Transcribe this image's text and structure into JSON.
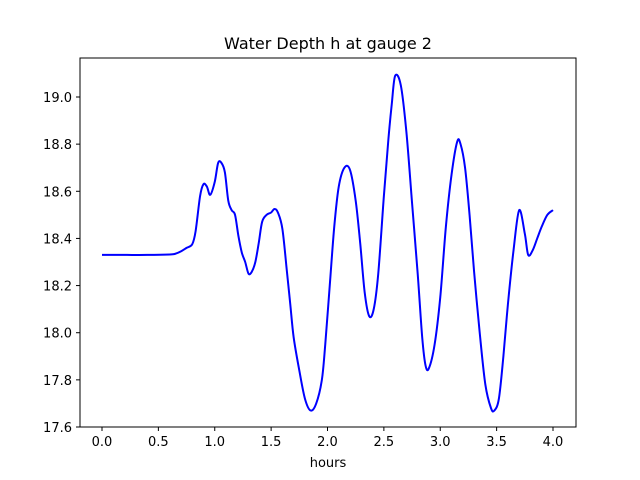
{
  "chart_data": {
    "type": "line",
    "title": "Water Depth h at gauge 2",
    "xlabel": "hours",
    "ylabel": "",
    "xlim": [
      -0.2,
      4.2
    ],
    "ylim": [
      17.6,
      19.15
    ],
    "x_ticks": [
      0.0,
      0.5,
      1.0,
      1.5,
      2.0,
      2.5,
      3.0,
      3.5,
      4.0
    ],
    "x_tick_labels": [
      "0.0",
      "0.5",
      "1.0",
      "1.5",
      "2.0",
      "2.5",
      "3.0",
      "3.5",
      "4.0"
    ],
    "y_ticks": [
      17.6,
      17.8,
      18.0,
      18.2,
      18.4,
      18.6,
      18.8,
      19.0
    ],
    "y_tick_labels": [
      "17.6",
      "17.8",
      "18.0",
      "18.2",
      "18.4",
      "18.6",
      "18.8",
      "19.0"
    ],
    "grid": false,
    "series": [
      {
        "color": "#0000ff",
        "x": [
          0.0,
          0.2,
          0.4,
          0.6,
          0.65,
          0.7,
          0.75,
          0.8,
          0.83,
          0.87,
          0.9,
          0.93,
          0.96,
          1.0,
          1.03,
          1.06,
          1.09,
          1.12,
          1.15,
          1.18,
          1.21,
          1.24,
          1.27,
          1.3,
          1.33,
          1.36,
          1.39,
          1.42,
          1.46,
          1.5,
          1.53,
          1.56,
          1.6,
          1.64,
          1.67,
          1.7,
          1.75,
          1.8,
          1.85,
          1.9,
          1.95,
          1.98,
          2.02,
          2.06,
          2.1,
          2.15,
          2.2,
          2.25,
          2.29,
          2.33,
          2.37,
          2.41,
          2.45,
          2.5,
          2.54,
          2.57,
          2.6,
          2.65,
          2.7,
          2.75,
          2.8,
          2.84,
          2.87,
          2.9,
          2.95,
          3.0,
          3.05,
          3.1,
          3.15,
          3.18,
          3.22,
          3.26,
          3.3,
          3.35,
          3.4,
          3.45,
          3.48,
          3.52,
          3.56,
          3.6,
          3.65,
          3.7,
          3.75,
          3.78,
          3.82,
          3.86,
          3.9,
          3.95,
          4.0
        ],
        "y": [
          18.33,
          18.33,
          18.33,
          18.332,
          18.335,
          18.345,
          18.36,
          18.375,
          18.43,
          18.58,
          18.63,
          18.62,
          18.585,
          18.64,
          18.72,
          18.72,
          18.68,
          18.56,
          18.52,
          18.5,
          18.41,
          18.34,
          18.3,
          18.25,
          18.26,
          18.3,
          18.38,
          18.47,
          18.5,
          18.51,
          18.525,
          18.51,
          18.44,
          18.26,
          18.12,
          17.98,
          17.84,
          17.72,
          17.67,
          17.7,
          17.8,
          17.95,
          18.2,
          18.45,
          18.62,
          18.7,
          18.69,
          18.56,
          18.38,
          18.17,
          18.07,
          18.1,
          18.25,
          18.58,
          18.82,
          18.97,
          19.09,
          19.05,
          18.85,
          18.55,
          18.25,
          17.98,
          17.86,
          17.85,
          17.95,
          18.15,
          18.45,
          18.67,
          18.81,
          18.8,
          18.7,
          18.5,
          18.26,
          18.0,
          17.78,
          17.68,
          17.67,
          17.72,
          17.9,
          18.12,
          18.35,
          18.52,
          18.42,
          18.33,
          18.35,
          18.4,
          18.45,
          18.5,
          18.52
        ]
      }
    ]
  }
}
